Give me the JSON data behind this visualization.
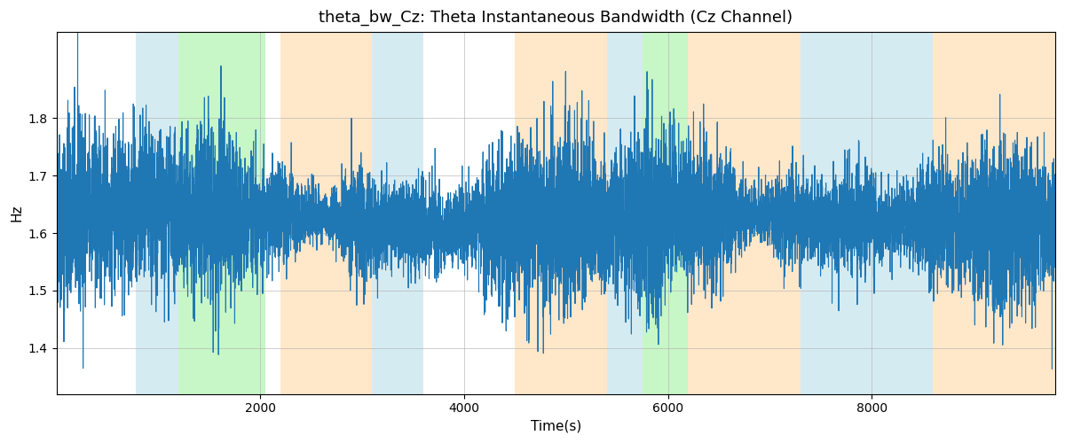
{
  "title": "theta_bw_Cz: Theta Instantaneous Bandwidth (Cz Channel)",
  "xlabel": "Time(s)",
  "ylabel": "Hz",
  "xlim": [
    0,
    9800
  ],
  "ylim": [
    1.32,
    1.95
  ],
  "yticks": [
    1.4,
    1.5,
    1.6,
    1.7,
    1.8
  ],
  "xticks": [
    2000,
    4000,
    6000,
    8000
  ],
  "line_color": "#1f77b4",
  "line_width": 0.8,
  "seed": 42,
  "n_points": 9800,
  "mean": 1.625,
  "std": 0.055,
  "title_fontsize": 13,
  "regions": [
    {
      "start": 780,
      "end": 1200,
      "color": "#add8e6",
      "alpha": 0.5
    },
    {
      "start": 1200,
      "end": 2050,
      "color": "#90ee90",
      "alpha": 0.5
    },
    {
      "start": 2200,
      "end": 3100,
      "color": "#ffd8a8",
      "alpha": 0.6
    },
    {
      "start": 3100,
      "end": 3600,
      "color": "#add8e6",
      "alpha": 0.5
    },
    {
      "start": 4500,
      "end": 5400,
      "color": "#ffd8a8",
      "alpha": 0.6
    },
    {
      "start": 5400,
      "end": 5750,
      "color": "#add8e6",
      "alpha": 0.5
    },
    {
      "start": 5750,
      "end": 6200,
      "color": "#90ee90",
      "alpha": 0.5
    },
    {
      "start": 6200,
      "end": 7300,
      "color": "#ffd8a8",
      "alpha": 0.6
    },
    {
      "start": 7300,
      "end": 8600,
      "color": "#add8e6",
      "alpha": 0.5
    },
    {
      "start": 8600,
      "end": 9800,
      "color": "#ffd8a8",
      "alpha": 0.6
    }
  ],
  "background_color": "#ffffff",
  "grid_color": "#b0b0b0",
  "grid_alpha": 0.7,
  "grid_linewidth": 0.6
}
